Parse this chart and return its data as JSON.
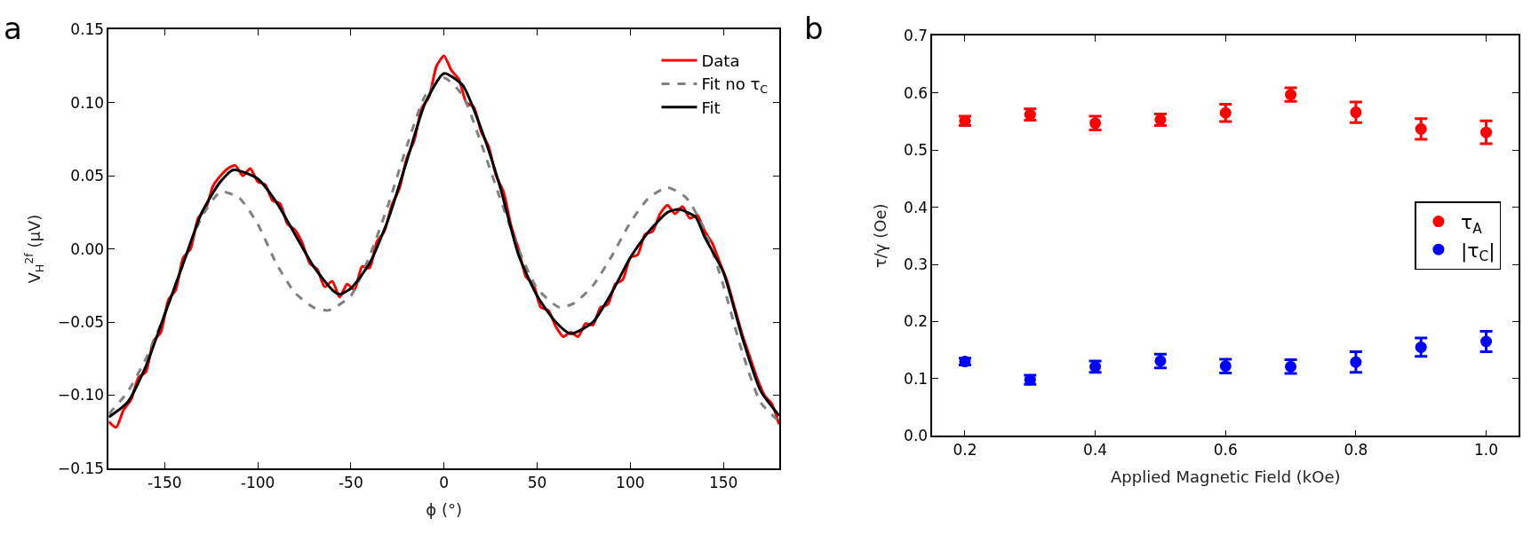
{
  "chart_data": [
    {
      "type": "line",
      "xlabel": "ϕ (°)",
      "ylabel": "V$_{H}$$^{2f}$ (μV)",
      "annotations": [
        "a"
      ],
      "xlim": [
        -180,
        180
      ],
      "xticks": [
        -150,
        -100,
        -50,
        0,
        50,
        100,
        150
      ],
      "ylim": [
        -0.15,
        0.15
      ],
      "yticks": [
        {
          "value": -0.15,
          "label": "−0.15"
        },
        {
          "value": -0.1,
          "label": "−0.10"
        },
        {
          "value": -0.05,
          "label": "−0.05"
        },
        {
          "value": 0,
          "label": "0.00"
        },
        {
          "value": 0.05,
          "label": "0.05"
        },
        {
          "value": 0.1,
          "label": "0.10"
        },
        {
          "value": 0.15,
          "label": "0.15"
        }
      ],
      "legend": "top right",
      "marker": "none",
      "series": [
        {
          "name": "Data",
          "color": "#ff0000",
          "line_style": "solid",
          "x": [
            -180,
            -176,
            -172,
            -168,
            -164,
            -160,
            -156,
            -152,
            -148,
            -144,
            -140,
            -136,
            -132,
            -128,
            -124,
            -120,
            -116,
            -112,
            -108,
            -104,
            -100,
            -96,
            -92,
            -88,
            -84,
            -80,
            -76,
            -72,
            -68,
            -64,
            -60,
            -56,
            -52,
            -48,
            -44,
            -40,
            -36,
            -32,
            -28,
            -24,
            -20,
            -16,
            -12,
            -8,
            -4,
            0,
            4,
            8,
            12,
            16,
            20,
            24,
            28,
            32,
            36,
            40,
            44,
            48,
            52,
            56,
            60,
            64,
            68,
            72,
            76,
            80,
            84,
            88,
            92,
            96,
            100,
            104,
            108,
            112,
            116,
            120,
            124,
            128,
            132,
            136,
            140,
            144,
            148,
            152,
            156,
            160,
            164,
            168,
            172,
            176,
            180
          ],
          "values": [
            -0.118,
            -0.122,
            -0.11,
            -0.103,
            -0.088,
            -0.084,
            -0.063,
            -0.057,
            -0.035,
            -0.028,
            -0.006,
            0.0,
            0.021,
            0.027,
            0.043,
            0.05,
            0.055,
            0.057,
            0.05,
            0.055,
            0.046,
            0.044,
            0.033,
            0.031,
            0.017,
            0.013,
            0.004,
            -0.01,
            -0.014,
            -0.026,
            -0.022,
            -0.033,
            -0.024,
            -0.028,
            -0.012,
            -0.013,
            0.005,
            0.012,
            0.03,
            0.041,
            0.062,
            0.074,
            0.096,
            0.104,
            0.125,
            0.132,
            0.122,
            0.116,
            0.1,
            0.097,
            0.08,
            0.07,
            0.05,
            0.039,
            0.016,
            0.0,
            -0.019,
            -0.024,
            -0.04,
            -0.042,
            -0.053,
            -0.06,
            -0.057,
            -0.06,
            -0.051,
            -0.052,
            -0.04,
            -0.038,
            -0.024,
            -0.021,
            -0.006,
            -0.004,
            0.01,
            0.012,
            0.024,
            0.03,
            0.024,
            0.029,
            0.021,
            0.023,
            0.012,
            0.004,
            -0.009,
            -0.022,
            -0.04,
            -0.058,
            -0.073,
            -0.088,
            -0.1,
            -0.106,
            -0.12
          ]
        },
        {
          "name": "Fit no τ$_{C}$",
          "color": "#808080",
          "line_style": "dashed",
          "x": [
            -180,
            -170,
            -160,
            -150,
            -140,
            -130,
            -120,
            -110,
            -100,
            -90,
            -80,
            -70,
            -62,
            -50,
            -40,
            -30,
            -20,
            -10,
            0,
            10,
            20,
            30,
            40,
            50,
            62,
            70,
            80,
            90,
            100,
            110,
            120,
            130,
            140,
            150,
            160,
            170,
            180
          ],
          "values": [
            -0.113,
            -0.098,
            -0.075,
            -0.045,
            -0.01,
            0.022,
            0.039,
            0.035,
            0.017,
            -0.01,
            -0.03,
            -0.04,
            -0.042,
            -0.032,
            -0.005,
            0.03,
            0.07,
            0.105,
            0.117,
            0.105,
            0.072,
            0.035,
            0.0,
            -0.027,
            -0.04,
            -0.037,
            -0.025,
            -0.005,
            0.018,
            0.035,
            0.042,
            0.035,
            0.013,
            -0.025,
            -0.07,
            -0.105,
            -0.118
          ]
        },
        {
          "name": "Fit",
          "color": "#000000",
          "line_style": "solid",
          "x": [
            -180,
            -170,
            -160,
            -150,
            -140,
            -130,
            -120,
            -113,
            -100,
            -90,
            -80,
            -70,
            -60,
            -56,
            -50,
            -40,
            -30,
            -20,
            -10,
            0,
            10,
            20,
            30,
            40,
            50,
            60,
            68,
            80,
            90,
            100,
            110,
            120,
            126,
            135,
            140,
            150,
            160,
            170,
            180
          ],
          "values": [
            -0.115,
            -0.105,
            -0.08,
            -0.045,
            -0.01,
            0.025,
            0.046,
            0.054,
            0.048,
            0.032,
            0.01,
            -0.012,
            -0.028,
            -0.031,
            -0.027,
            -0.01,
            0.02,
            0.06,
            0.1,
            0.12,
            0.112,
            0.082,
            0.043,
            -0.004,
            -0.032,
            -0.05,
            -0.058,
            -0.05,
            -0.03,
            -0.006,
            0.012,
            0.025,
            0.027,
            0.022,
            0.008,
            -0.016,
            -0.06,
            -0.097,
            -0.114
          ]
        }
      ]
    },
    {
      "type": "scatter",
      "xlabel": "Applied Magnetic Field (kOe)",
      "ylabel": "τ/γ (Oe)",
      "annotations": [
        "b"
      ],
      "xlim": [
        0.15,
        1.05
      ],
      "xticks": [
        0.2,
        0.4,
        0.6,
        0.8,
        {
          "value": 1.0,
          "label": "1.0"
        }
      ],
      "ylim": [
        0,
        0.7
      ],
      "yticks": [
        {
          "value": 0,
          "label": "0.0"
        },
        0.1,
        0.2,
        0.3,
        0.4,
        0.5,
        0.6,
        0.7
      ],
      "legend": "right",
      "marker": "circle",
      "x": [
        0.2,
        0.3,
        0.4,
        0.5,
        0.6,
        0.7,
        0.8,
        0.9,
        1.0
      ],
      "series": [
        {
          "name": "τ$_{A}$",
          "color": "#ff0000",
          "values": [
            0.551,
            0.562,
            0.547,
            0.553,
            0.565,
            0.597,
            0.566,
            0.537,
            0.531
          ],
          "errors": [
            0.008,
            0.01,
            0.012,
            0.01,
            0.015,
            0.012,
            0.018,
            0.018,
            0.02
          ]
        },
        {
          "name": "|τ$_{C}$|",
          "color": "#0000ff",
          "values": [
            0.13,
            0.098,
            0.121,
            0.131,
            0.122,
            0.121,
            0.129,
            0.155,
            0.165
          ],
          "errors": [
            0.006,
            0.008,
            0.01,
            0.012,
            0.012,
            0.012,
            0.018,
            0.016,
            0.018
          ]
        }
      ]
    }
  ]
}
